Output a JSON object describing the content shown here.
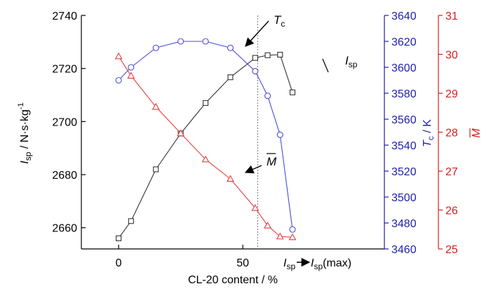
{
  "chart_data": {
    "type": "line",
    "xlabel": "CL-20 content / %",
    "xlim": [
      -15,
      107
    ],
    "xticks": [
      0,
      50
    ],
    "axes": {
      "isp": {
        "label_main": "I",
        "label_sub": "sp",
        "label_unit": " / N·s·kg",
        "label_sup": "-1",
        "ylim": [
          2652,
          2740
        ],
        "ticks": [
          2660,
          2680,
          2700,
          2720,
          2740
        ],
        "color": "#000000"
      },
      "tc": {
        "label_main": "T",
        "label_sub": "c",
        "label_unit": " / K",
        "ylim": [
          3460,
          3640
        ],
        "ticks": [
          3460,
          3480,
          3500,
          3520,
          3540,
          3560,
          3580,
          3600,
          3620,
          3640
        ],
        "color": "#1f1fa8"
      },
      "m": {
        "label_main": "M",
        "ylim": [
          25,
          31
        ],
        "ticks": [
          25,
          26,
          27,
          28,
          29,
          30,
          31
        ],
        "color": "#d42020"
      }
    },
    "series": [
      {
        "key": "isp",
        "marker": "square",
        "color": "#333333",
        "x": [
          0,
          5,
          15,
          25,
          35,
          45,
          55,
          60,
          65,
          70
        ],
        "y": [
          2656,
          2662.5,
          2682,
          2695.5,
          2707,
          2716.7,
          2724,
          2725,
          2725.2,
          2711
        ]
      },
      {
        "key": "tc",
        "marker": "circle",
        "color": "#4a4ad6",
        "x": [
          0,
          5,
          15,
          25,
          35,
          45,
          55,
          60,
          65,
          70
        ],
        "y": [
          3590,
          3600,
          3615,
          3620,
          3620,
          3615,
          3597,
          3578,
          3548,
          3475
        ]
      },
      {
        "key": "m",
        "marker": "triangle",
        "color": "#e04040",
        "x": [
          0,
          5,
          15,
          25,
          35,
          45,
          55,
          60,
          65,
          70
        ],
        "y": [
          29.95,
          29.45,
          28.65,
          27.97,
          27.3,
          26.8,
          26.05,
          25.6,
          25.32,
          25.3
        ]
      }
    ],
    "annotations": {
      "tc_label_main": "T",
      "tc_label_sub": "c",
      "isp_label_main": "I",
      "isp_label_sub": "sp",
      "m_label": "M",
      "vline_x": 56,
      "vline_main1": "I",
      "vline_sub1": "sp",
      "vline_main2": "I",
      "vline_sub2": "sp",
      "vline_tail": "(max)"
    }
  }
}
